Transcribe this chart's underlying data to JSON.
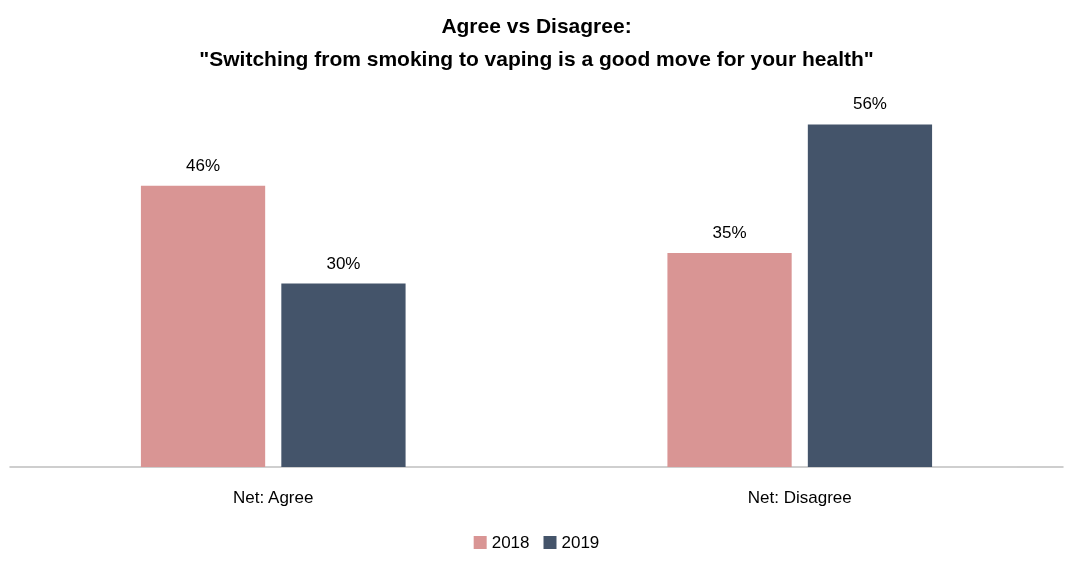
{
  "chart_data": {
    "type": "bar",
    "title": "Agree vs Disagree:\n\"Switching from smoking to vaping is a good move for your health\"",
    "categories": [
      "Net: Agree",
      "Net: Disagree"
    ],
    "series": [
      {
        "name": "2018",
        "color": "#d99594",
        "values": [
          46,
          35
        ],
        "value_labels": [
          "46%",
          "35%"
        ]
      },
      {
        "name": "2019",
        "color": "#44546a",
        "values": [
          30,
          56
        ],
        "value_labels": [
          "30%",
          "56%"
        ]
      }
    ],
    "tick_labels": "x",
    "legend": "bottom"
  }
}
